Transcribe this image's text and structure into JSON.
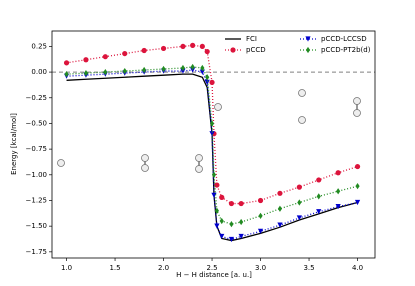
{
  "chart_data": {
    "type": "line",
    "x_label": "H − H distance [a. u.]",
    "y_label": "Energy [kcal/mol]",
    "x": [
      1.0,
      1.2,
      1.4,
      1.6,
      1.8,
      2.0,
      2.2,
      2.3,
      2.4,
      2.45,
      2.5,
      2.52,
      2.55,
      2.6,
      2.7,
      2.8,
      3.0,
      3.2,
      3.4,
      3.6,
      3.8,
      4.0
    ],
    "series": [
      {
        "name": "FCI",
        "color": "#000000",
        "linestyle": "solid",
        "values": [
          -0.08,
          -0.07,
          -0.06,
          -0.05,
          -0.04,
          -0.03,
          -0.02,
          -0.02,
          -0.05,
          -0.15,
          -0.6,
          -1.2,
          -1.5,
          -1.62,
          -1.64,
          -1.62,
          -1.57,
          -1.51,
          -1.44,
          -1.38,
          -1.32,
          -1.27
        ]
      },
      {
        "name": "pCCD",
        "color": "#dc143c",
        "linestyle": "dotted",
        "marker": "circle",
        "values": [
          0.09,
          0.12,
          0.15,
          0.18,
          0.21,
          0.23,
          0.25,
          0.26,
          0.25,
          0.2,
          -0.1,
          -0.6,
          -1.1,
          -1.22,
          -1.28,
          -1.28,
          -1.25,
          -1.18,
          -1.12,
          -1.05,
          -0.98,
          -0.92
        ]
      },
      {
        "name": "pCCD-LCCSD",
        "color": "#0000cd",
        "linestyle": "dotted",
        "marker": "triangle-down",
        "values": [
          -0.04,
          -0.03,
          -0.02,
          -0.01,
          0.0,
          0.01,
          0.01,
          0.02,
          0.0,
          -0.1,
          -0.6,
          -1.2,
          -1.5,
          -1.6,
          -1.63,
          -1.6,
          -1.55,
          -1.49,
          -1.42,
          -1.36,
          -1.31,
          -1.27
        ]
      },
      {
        "name": "pCCD-PT2b(d)",
        "color": "#228b22",
        "linestyle": "dotted",
        "marker": "diamond",
        "values": [
          -0.02,
          -0.01,
          0.0,
          0.01,
          0.02,
          0.03,
          0.04,
          0.05,
          0.04,
          -0.05,
          -0.5,
          -1.0,
          -1.35,
          -1.45,
          -1.48,
          -1.46,
          -1.4,
          -1.33,
          -1.27,
          -1.21,
          -1.16,
          -1.11
        ]
      }
    ],
    "xlim": [
      0.85,
      4.18
    ],
    "ylim": [
      -1.81,
      0.4
    ],
    "xticks": [
      {
        "value": 1.0,
        "label": "1.0"
      },
      {
        "value": 1.5,
        "label": "1.5"
      },
      {
        "value": 2.0,
        "label": "2.0"
      },
      {
        "value": 2.5,
        "label": "2.5"
      },
      {
        "value": 3.0,
        "label": "3.0"
      },
      {
        "value": 3.5,
        "label": "3.5"
      },
      {
        "value": 4.0,
        "label": "4.0"
      }
    ],
    "yticks": [
      {
        "value": 0.25,
        "label": "0.25"
      },
      {
        "value": 0,
        "label": "0.00"
      },
      {
        "value": -0.25,
        "label": "−0.25"
      },
      {
        "value": -0.5,
        "label": "−0.50"
      },
      {
        "value": -0.75,
        "label": "−0.75"
      },
      {
        "value": -1.0,
        "label": "−1.00"
      },
      {
        "value": -1.25,
        "label": "−1.25"
      },
      {
        "value": -1.5,
        "label": "−1.50"
      },
      {
        "value": -1.75,
        "label": "−1.75"
      }
    ],
    "reference_line": {
      "value": 0,
      "color": "#808080",
      "linestyle": "dashed"
    },
    "legend_position": "upper right"
  }
}
